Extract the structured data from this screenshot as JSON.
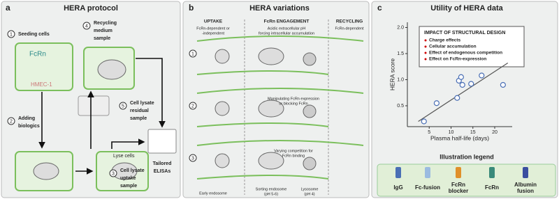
{
  "panel_a": {
    "letter": "a",
    "title": "HERA protocol",
    "steps": [
      {
        "number": "1",
        "lines": [
          "Seeding cells"
        ]
      },
      {
        "number": "2",
        "lines": [
          "Adding",
          "biologics"
        ]
      },
      {
        "number": "3",
        "lines": [
          "Cell lysate",
          "uptake",
          "sample"
        ]
      },
      {
        "number": "4",
        "lines": [
          "Recycling",
          "medium",
          "sample"
        ]
      },
      {
        "number": "5",
        "lines": [
          "Cell lysate",
          "residual",
          "sample"
        ]
      }
    ],
    "fcrn": "FcRn",
    "cell_line": "HMEC-1",
    "lyse": "Lyse cells",
    "elisa": [
      "Tailored",
      "ELISAs"
    ]
  },
  "panel_b": {
    "letter": "b",
    "title": "HERA variations",
    "columns": [
      {
        "header": "UPTAKE",
        "lines": [
          "FcRn-dependent or",
          "-independent"
        ]
      },
      {
        "header": "FcRn ENGAGEMENT",
        "lines": [
          "Acidic extracellular pH",
          "forcing intracellular accumulation"
        ]
      },
      {
        "header": "RECYCLING",
        "lines": [
          "FcRn-dependent"
        ]
      }
    ],
    "rows": [
      {
        "number": "1",
        "lines": []
      },
      {
        "number": "2",
        "lines": [
          "Manipulating FcRn expression",
          "or blocking FcRn"
        ]
      },
      {
        "number": "3",
        "lines": [
          "Varying competition for",
          "FcRn binding"
        ]
      }
    ],
    "compartments": [
      [
        "Early endosome"
      ],
      [
        "Sorting endosome",
        "(pH 5-6)"
      ],
      [
        "Lysosome",
        "(pH 4)"
      ]
    ]
  },
  "panel_c": {
    "letter": "c",
    "title": "Utility of HERA data",
    "box_title": "IMPACT OF STRUCTURAL DESIGN",
    "bullets": [
      "Charge effects",
      "Cellular accumulation",
      "Effect of endogenous competition",
      "Effect on FcRn-expression"
    ],
    "legend_title": "Illustration legend",
    "legend": [
      [
        "IgG"
      ],
      [
        "Fc-fusion"
      ],
      [
        "FcRn",
        "blocker"
      ],
      [
        "FcRn"
      ],
      [
        "Albumin",
        "fusion"
      ]
    ]
  },
  "chart_data": {
    "type": "scatter",
    "xlabel": "Plasma half-life (days)",
    "ylabel": "HERA score",
    "xlim": [
      0,
      24
    ],
    "ylim": [
      0.1,
      2.1
    ],
    "xticks": [
      5,
      10,
      15,
      20
    ],
    "yticks": [
      0.5,
      {
        "value": 1.0,
        "label": "1.0"
      },
      1.5,
      {
        "value": 2.0,
        "label": "2.0"
      }
    ],
    "series": [
      {
        "color": "#4a6fb5",
        "x": [
          3.8,
          6.7,
          11.4,
          11.8,
          12.3,
          12.6,
          14.6,
          17,
          21.9
        ],
        "y": [
          0.2,
          0.55,
          0.65,
          0.98,
          1.05,
          0.9,
          0.92,
          1.08,
          0.9
        ]
      }
    ],
    "trend": {
      "color": "#555555",
      "x": [
        2.5,
        23
      ],
      "y": [
        0.2,
        1.32
      ]
    }
  }
}
